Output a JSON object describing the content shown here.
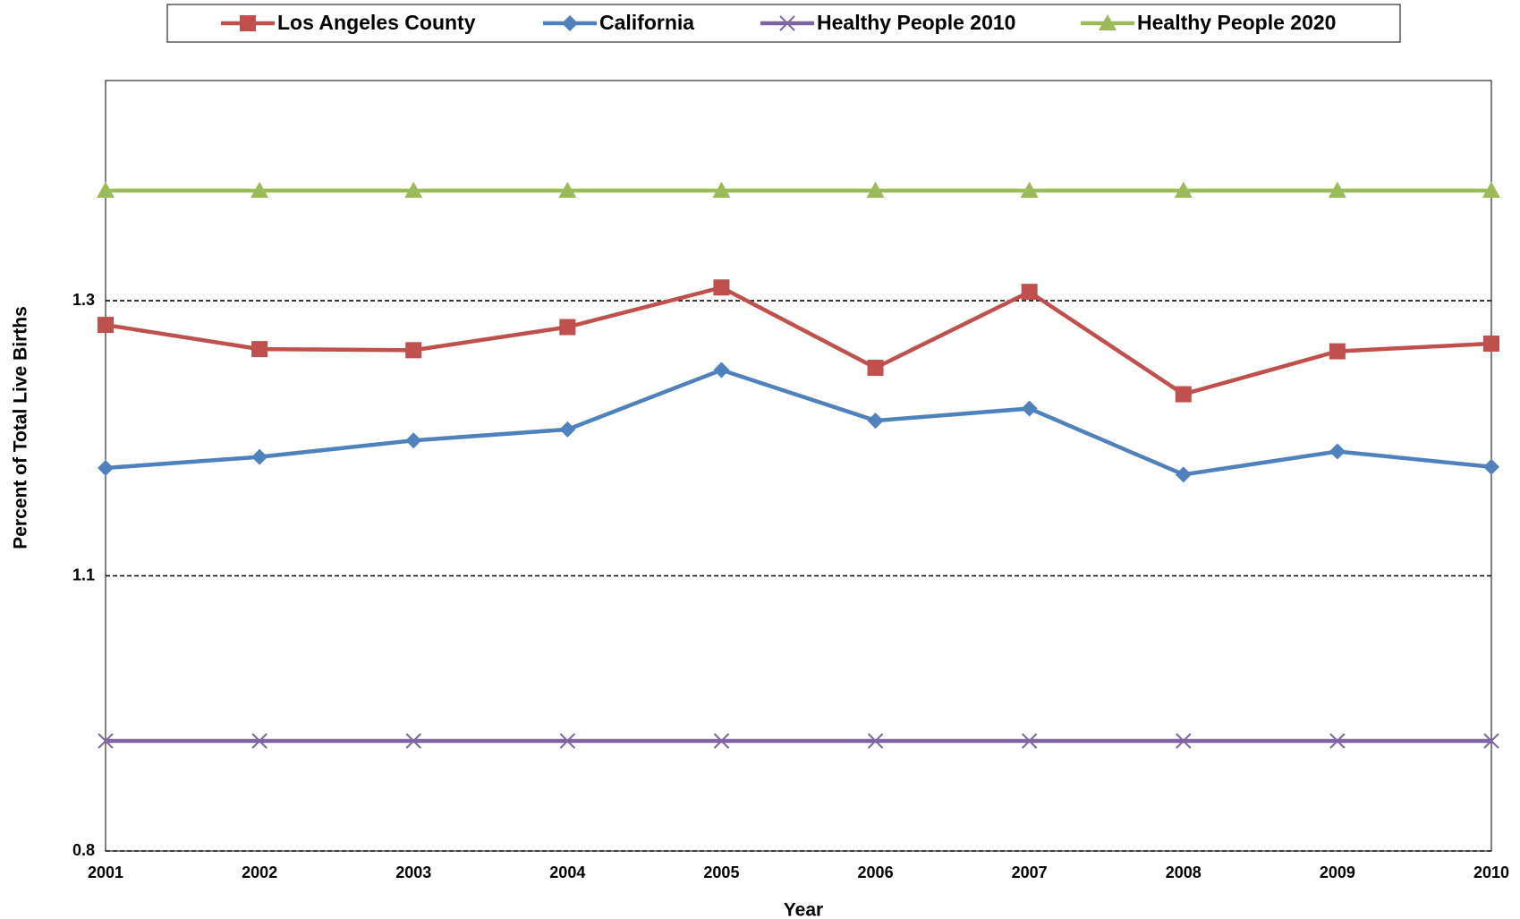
{
  "chart_data": {
    "type": "line",
    "x_label": "Year",
    "y_label": "Percent of Total Live Births",
    "categories": [
      "2001",
      "2002",
      "2003",
      "2004",
      "2005",
      "2006",
      "2007",
      "2008",
      "2009",
      "2010"
    ],
    "series": [
      {
        "name": "Los Angeles County",
        "color": "#c0504d",
        "marker": "square",
        "values": [
          1.278,
          1.256,
          1.255,
          1.276,
          1.312,
          1.239,
          1.308,
          1.215,
          1.254,
          1.261
        ]
      },
      {
        "name": "California",
        "color": "#4f81bd",
        "marker": "diamond",
        "values": [
          1.148,
          1.158,
          1.173,
          1.183,
          1.237,
          1.191,
          1.202,
          1.142,
          1.163,
          1.149
        ]
      },
      {
        "name": "Healthy People 2010",
        "color": "#8064a2",
        "marker": "x",
        "values": [
          0.9,
          0.9,
          0.9,
          0.9,
          0.9,
          0.9,
          0.9,
          0.9,
          0.9,
          0.9
        ]
      },
      {
        "name": "Healthy People 2020",
        "color": "#9bbb59",
        "marker": "triangle",
        "values": [
          1.4,
          1.4,
          1.4,
          1.4,
          1.4,
          1.4,
          1.4,
          1.4,
          1.4,
          1.4
        ]
      }
    ],
    "ylim": [
      0.8,
      1.5
    ],
    "yticks": [
      0.8,
      {
        "value": 1.05,
        "label": "1.1"
      },
      1.3
    ],
    "grid": true,
    "legend": "top"
  }
}
